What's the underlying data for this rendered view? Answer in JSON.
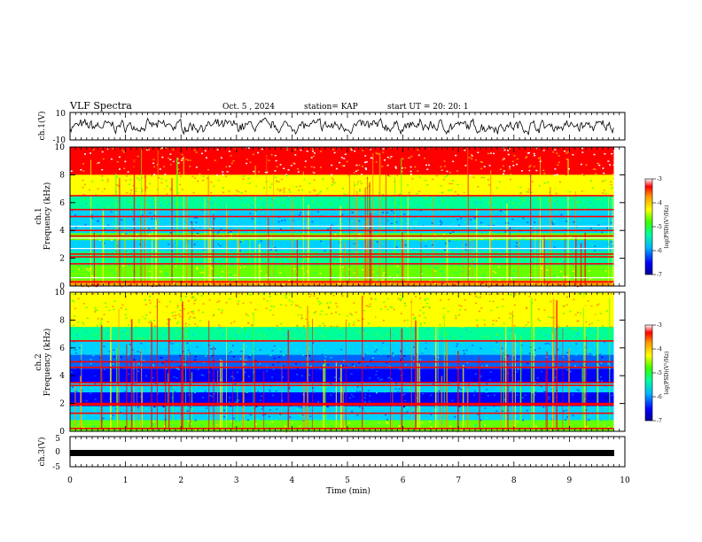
{
  "header": {
    "title": "VLF Spectra",
    "date": "Oct. 5  , 2024",
    "station": "station= KAP",
    "start": "start  UT =   20: 20: 1"
  },
  "colors": {
    "scale": [
      "#0000b4",
      "#0000ff",
      "#0064ff",
      "#00d2ff",
      "#00ff96",
      "#64ff00",
      "#ffff00",
      "#ff9600",
      "#ff0000",
      "#ffffff"
    ]
  },
  "chart_data": [
    {
      "type": "line",
      "panel": "ch1-waveform",
      "ylabel": "ch.1(V)",
      "ylim": [
        -10,
        10
      ],
      "y_ticks": [
        "10",
        "-10"
      ],
      "xlim": [
        0,
        10
      ],
      "description_values": "noisy waveform roughly between -4 and 4 V centred near 0"
    },
    {
      "type": "heatmap",
      "panel": "ch1-spectrogram",
      "ylabel": "ch.1\nFrequency  (kHz)",
      "ylim": [
        0,
        10
      ],
      "y_ticks": [
        "0",
        "2",
        "4",
        "6",
        "8",
        "10"
      ],
      "xlim": [
        0,
        9.8
      ],
      "colorbar": {
        "label": "log(PSD)(V²/Hz)",
        "range": [
          -7,
          -3
        ],
        "ticks": [
          "-3",
          "-4",
          "-5",
          "-6",
          "-7"
        ]
      },
      "bands": [
        {
          "from": 8.0,
          "to": 10.0,
          "level": 8
        },
        {
          "from": 6.5,
          "to": 8.0,
          "level": 6
        },
        {
          "from": 5.5,
          "to": 6.5,
          "level": 4
        },
        {
          "from": 4.8,
          "to": 5.5,
          "level": 3
        },
        {
          "from": 3.8,
          "to": 4.8,
          "level": 3
        },
        {
          "from": 3.3,
          "to": 3.8,
          "level": 5
        },
        {
          "from": 2.5,
          "to": 3.3,
          "level": 3
        },
        {
          "from": 1.5,
          "to": 2.5,
          "level": 4
        },
        {
          "from": 0.4,
          "to": 1.5,
          "level": 5
        },
        {
          "from": 0.0,
          "to": 0.4,
          "level": 7
        }
      ],
      "lines": [
        6.5,
        5.5,
        5.0,
        4.0,
        3.6,
        2.3,
        2.1,
        1.6,
        0.3
      ],
      "gaps": [
        4.3,
        3.45,
        2.7,
        0.6
      ]
    },
    {
      "type": "heatmap",
      "panel": "ch2-spectrogram",
      "ylabel": "ch.2\nFrequency  (kHz)",
      "ylim": [
        0,
        10
      ],
      "y_ticks": [
        "0",
        "2",
        "4",
        "6",
        "8",
        "10"
      ],
      "xlim": [
        0,
        9.8
      ],
      "colorbar": {
        "label": "log(PSD)(V²/Hz)",
        "range": [
          -7,
          -3
        ],
        "ticks": [
          "-3",
          "-4",
          "-5",
          "-6",
          "-7"
        ]
      },
      "bands": [
        {
          "from": 7.5,
          "to": 10.0,
          "level": 6
        },
        {
          "from": 6.5,
          "to": 7.5,
          "level": 4
        },
        {
          "from": 5.5,
          "to": 6.5,
          "level": 3
        },
        {
          "from": 4.5,
          "to": 5.5,
          "level": 2
        },
        {
          "from": 3.5,
          "to": 4.5,
          "level": 1
        },
        {
          "from": 2.8,
          "to": 3.5,
          "level": 3
        },
        {
          "from": 1.8,
          "to": 2.8,
          "level": 1
        },
        {
          "from": 0.8,
          "to": 1.8,
          "level": 3
        },
        {
          "from": 0.0,
          "to": 0.8,
          "level": 5
        }
      ],
      "lines": [
        6.5,
        5.0,
        4.6,
        3.5,
        3.3,
        2.0,
        1.9,
        1.3,
        0.2
      ],
      "gaps": []
    },
    {
      "type": "line",
      "panel": "ch3-waveform",
      "ylabel": "ch.3(V)",
      "ylim": [
        -5,
        5
      ],
      "y_ticks": [
        "5",
        "0",
        "-5"
      ],
      "xlim": [
        0,
        10
      ],
      "description_values": "flat saturated band near -1 V"
    }
  ],
  "xaxis": {
    "label": "Time  (min)",
    "ticks": [
      "0",
      "1",
      "2",
      "3",
      "4",
      "5",
      "6",
      "7",
      "8",
      "9",
      "10"
    ]
  }
}
